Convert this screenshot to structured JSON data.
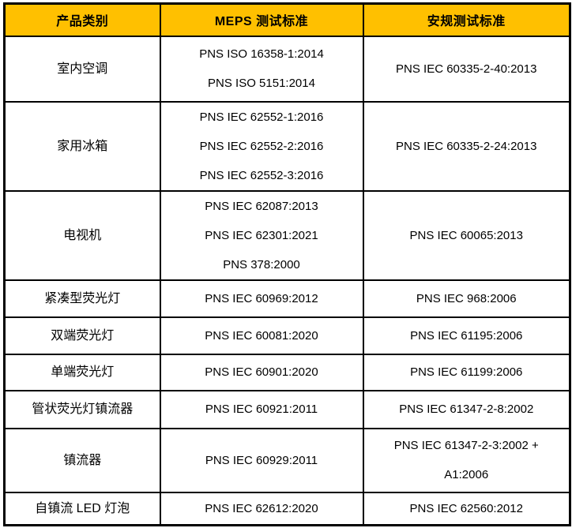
{
  "table": {
    "headers": {
      "category": "产品类别",
      "meps": "MEPS 测试标准",
      "safety": "安规测试标准"
    },
    "rows": [
      {
        "category": "室内空调",
        "meps": [
          "PNS ISO 16358-1:2014",
          "PNS ISO 5151:2014"
        ],
        "safety": [
          "PNS IEC 60335-2-40:2013"
        ]
      },
      {
        "category": "家用冰箱",
        "meps": [
          "PNS IEC 62552-1:2016",
          "PNS IEC 62552-2:2016",
          "PNS IEC 62552-3:2016"
        ],
        "safety": [
          "PNS IEC 60335-2-24:2013"
        ]
      },
      {
        "category": "电视机",
        "meps": [
          "PNS IEC 62087:2013",
          "PNS IEC 62301:2021",
          "PNS 378:2000"
        ],
        "safety": [
          "PNS IEC 60065:2013"
        ]
      },
      {
        "category": "紧凑型荧光灯",
        "meps": [
          "PNS IEC 60969:2012"
        ],
        "safety": [
          "PNS IEC 968:2006"
        ]
      },
      {
        "category": "双端荧光灯",
        "meps": [
          "PNS IEC 60081:2020"
        ],
        "safety": [
          "PNS IEC 61195:2006"
        ]
      },
      {
        "category": "单端荧光灯",
        "meps": [
          "PNS IEC 60901:2020"
        ],
        "safety": [
          "PNS IEC 61199:2006"
        ]
      },
      {
        "category": "管状荧光灯镇流器",
        "meps": [
          "PNS IEC 60921:2011"
        ],
        "safety": [
          "PNS IEC 61347-2-8:2002"
        ]
      },
      {
        "category": "镇流器",
        "meps": [
          "PNS IEC 60929:2011"
        ],
        "safety": [
          "PNS IEC 61347-2-3:2002 +",
          "A1:2006"
        ]
      },
      {
        "category": "自镇流 LED 灯泡",
        "meps": [
          "PNS IEC 62612:2020"
        ],
        "safety": [
          "PNS IEC 62560:2012"
        ]
      }
    ],
    "colors": {
      "header_bg": "#FFC000",
      "border": "#000000",
      "text": "#000000",
      "background": "#FFFFFF"
    }
  }
}
